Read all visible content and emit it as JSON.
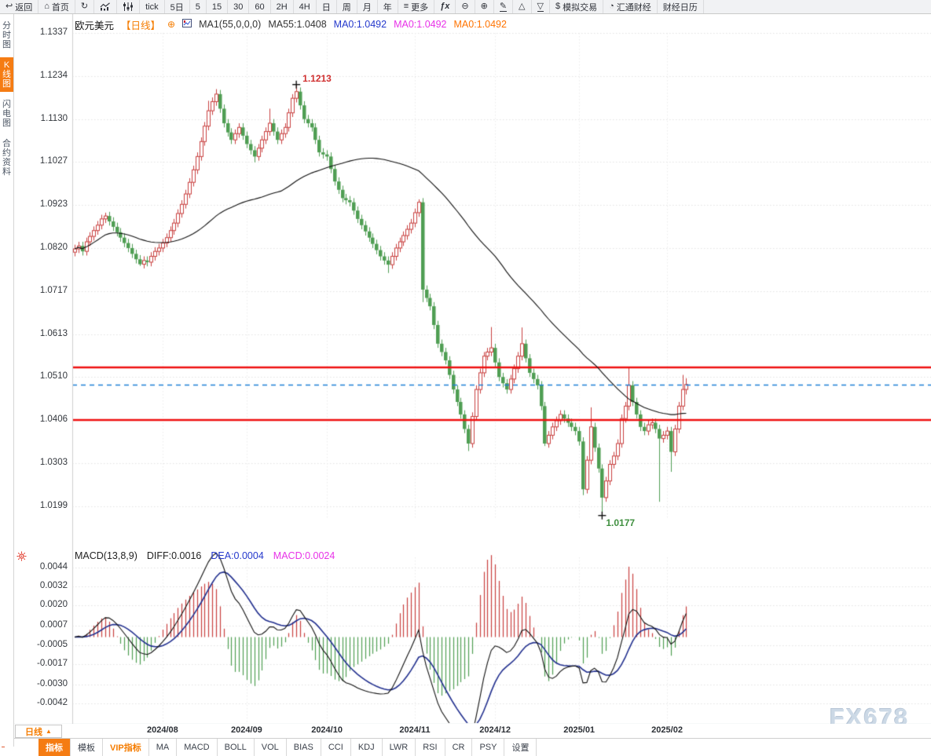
{
  "toolbar": {
    "items": [
      {
        "label": "返回",
        "icon": "back-arrow"
      },
      {
        "label": "首页",
        "icon": "home"
      },
      {
        "label": "",
        "icon": "refresh"
      },
      {
        "label": "",
        "icon": "bar-chart"
      },
      {
        "label": "",
        "icon": "candlestick"
      },
      {
        "label": "tick",
        "icon": ""
      },
      {
        "label": "5日",
        "icon": ""
      },
      {
        "label": "5",
        "icon": ""
      },
      {
        "label": "15",
        "icon": ""
      },
      {
        "label": "30",
        "icon": ""
      },
      {
        "label": "60",
        "icon": ""
      },
      {
        "label": "2H",
        "icon": ""
      },
      {
        "label": "4H",
        "icon": ""
      },
      {
        "label": "日",
        "icon": ""
      },
      {
        "label": "周",
        "icon": ""
      },
      {
        "label": "月",
        "icon": ""
      },
      {
        "label": "年",
        "icon": ""
      },
      {
        "label": "更多",
        "icon": "menu"
      },
      {
        "label": "",
        "icon": "fx"
      },
      {
        "label": "",
        "icon": "zoom-out"
      },
      {
        "label": "",
        "icon": "zoom-in"
      },
      {
        "label": "",
        "icon": "pencil"
      },
      {
        "label": "",
        "icon": "triangle-up"
      },
      {
        "label": "",
        "icon": "triangle-down"
      },
      {
        "label": "模拟交易",
        "icon": "dollar"
      },
      {
        "label": "汇通财经",
        "icon": "clock"
      },
      {
        "label": "财经日历",
        "icon": ""
      }
    ]
  },
  "sidebar": {
    "items": [
      {
        "label": "分时图",
        "active": false
      },
      {
        "label": "K线图",
        "active": true
      },
      {
        "label": "闪电图",
        "active": false
      },
      {
        "label": "合约资料",
        "active": false
      }
    ]
  },
  "main_header": {
    "symbol": "欧元美元",
    "period": "【日线】",
    "add_icon": "⊕",
    "ma_settings": "MA1(55,0,0,0)",
    "ma55": "MA55:1.0408",
    "ma0_blue": "MA0:1.0492",
    "ma0_magenta": "MA0:1.0492",
    "ma0_orange": "MA0:1.0492"
  },
  "macd_header": {
    "title": "MACD(13,8,9)",
    "diff": "DIFF:0.0016",
    "dea": "DEA:0.0004",
    "macd": "MACD:0.0024"
  },
  "bottom": {
    "period_button": "日线",
    "period_arrow": "▲",
    "tabs": [
      {
        "label": "指标",
        "style": "active"
      },
      {
        "label": "模板",
        "style": ""
      },
      {
        "label": "VIP指标",
        "style": "vip"
      },
      {
        "label": "MA",
        "style": ""
      },
      {
        "label": "MACD",
        "style": ""
      },
      {
        "label": "BOLL",
        "style": ""
      },
      {
        "label": "VOL",
        "style": ""
      },
      {
        "label": "BIAS",
        "style": ""
      },
      {
        "label": "CCI",
        "style": ""
      },
      {
        "label": "KDJ",
        "style": ""
      },
      {
        "label": "LWR",
        "style": ""
      },
      {
        "label": "RSI",
        "style": ""
      },
      {
        "label": "CR",
        "style": ""
      },
      {
        "label": "PSY",
        "style": ""
      },
      {
        "label": "设置",
        "style": ""
      }
    ]
  },
  "watermark": "FX678",
  "chart_data": {
    "type": "candlestick",
    "title": "欧元美元 日线 (EUR/USD Daily)",
    "y_ticks_main": [
      "1.1337",
      "1.1234",
      "1.1130",
      "1.1027",
      "1.0923",
      "1.0820",
      "1.0717",
      "1.0613",
      "1.0510",
      "1.0406",
      "1.0303",
      "1.0199"
    ],
    "y_ticks_macd": [
      "0.0044",
      "0.0032",
      "0.0020",
      "0.0007",
      "-0.0005",
      "-0.0017",
      "-0.0030",
      "-0.0042"
    ],
    "month_labels": [
      {
        "label": "2024/08",
        "index": 23
      },
      {
        "label": "2024/09",
        "index": 45
      },
      {
        "label": "2024/10",
        "index": 66
      },
      {
        "label": "2024/11",
        "index": 89
      },
      {
        "label": "2024/12",
        "index": 110
      },
      {
        "label": "2025/01",
        "index": 132
      },
      {
        "label": "2025/02",
        "index": 155
      }
    ],
    "levels": {
      "resistance": 1.0533,
      "support": 1.0406,
      "last_price": 1.0492
    },
    "ma_period": 55,
    "macd_params": {
      "short": 8,
      "long": 13,
      "signal": 9
    },
    "annotations": {
      "high": {
        "index": 58,
        "price": 1.1213,
        "label": "1.1213"
      },
      "low": {
        "index": 138,
        "price": 1.0177,
        "label": "1.0177"
      }
    },
    "colors": {
      "up": "#c9403f",
      "down": "#4f9e53",
      "ma": "#111111",
      "diff": "#111111",
      "dea": "#22308f",
      "level": "#ee1010",
      "last_price": "#1e7fd7",
      "grid": "#e4e4e4",
      "vgrid": "#ececec",
      "annotation_high": "#d03030",
      "annotation_low": "#3f8f3f",
      "accent": "#ff7300",
      "header_blue": "#2438cc",
      "header_magenta": "#e832e8"
    },
    "candles": [
      [
        1.081,
        1.0828,
        1.08,
        1.0818
      ],
      [
        1.0818,
        1.0835,
        1.0808,
        1.0825
      ],
      [
        1.0825,
        1.0835,
        1.0802,
        1.0812
      ],
      [
        1.0812,
        1.0845,
        1.0802,
        1.0835
      ],
      [
        1.0835,
        1.0858,
        1.0825,
        1.0848
      ],
      [
        1.0848,
        1.0872,
        1.0838,
        1.0862
      ],
      [
        1.0862,
        1.0885,
        1.0852,
        1.0875
      ],
      [
        1.0875,
        1.09,
        1.0865,
        1.089
      ],
      [
        1.089,
        1.0905,
        1.088,
        1.0897
      ],
      [
        1.0897,
        1.0907,
        1.0874,
        1.0884
      ],
      [
        1.0884,
        1.0894,
        1.0861,
        1.0871
      ],
      [
        1.0871,
        1.0881,
        1.0848,
        1.0858
      ],
      [
        1.0858,
        1.0868,
        1.0835,
        1.0845
      ],
      [
        1.0845,
        1.0855,
        1.0822,
        1.0832
      ],
      [
        1.0832,
        1.0842,
        1.081,
        1.082
      ],
      [
        1.082,
        1.083,
        1.0796,
        1.0806
      ],
      [
        1.0806,
        1.0816,
        1.0783,
        1.0793
      ],
      [
        1.0793,
        1.0803,
        1.0777,
        1.0781
      ],
      [
        1.0781,
        1.08,
        1.0771,
        1.079
      ],
      [
        1.079,
        1.08,
        1.0776,
        1.0786
      ],
      [
        1.0786,
        1.081,
        1.0776,
        1.08
      ],
      [
        1.08,
        1.0822,
        1.079,
        1.0812
      ],
      [
        1.0812,
        1.083,
        1.0802,
        1.082
      ],
      [
        1.082,
        1.0842,
        1.081,
        1.0832
      ],
      [
        1.0832,
        1.0855,
        1.0822,
        1.0845
      ],
      [
        1.0845,
        1.0872,
        1.0835,
        1.0862
      ],
      [
        1.0862,
        1.089,
        1.0852,
        1.088
      ],
      [
        1.088,
        1.0913,
        1.087,
        1.0903
      ],
      [
        1.0903,
        1.0935,
        1.0893,
        1.0925
      ],
      [
        1.0925,
        1.096,
        1.0915,
        1.095
      ],
      [
        1.095,
        1.0988,
        1.094,
        1.0978
      ],
      [
        1.0978,
        1.1018,
        1.0968,
        1.1008
      ],
      [
        1.1008,
        1.105,
        1.0998,
        1.104
      ],
      [
        1.104,
        1.1086,
        1.103,
        1.1076
      ],
      [
        1.1076,
        1.1123,
        1.1066,
        1.1113
      ],
      [
        1.1113,
        1.1174,
        1.1103,
        1.115
      ],
      [
        1.115,
        1.1182,
        1.114,
        1.1172
      ],
      [
        1.1172,
        1.1202,
        1.1162,
        1.119
      ],
      [
        1.119,
        1.12,
        1.1145,
        1.1155
      ],
      [
        1.1155,
        1.1165,
        1.111,
        1.112
      ],
      [
        1.112,
        1.113,
        1.1088,
        1.1098
      ],
      [
        1.1098,
        1.1108,
        1.107,
        1.108
      ],
      [
        1.108,
        1.1105,
        1.107,
        1.1095
      ],
      [
        1.1095,
        1.112,
        1.1085,
        1.111
      ],
      [
        1.111,
        1.112,
        1.108,
        1.109
      ],
      [
        1.109,
        1.11,
        1.106,
        1.107
      ],
      [
        1.107,
        1.108,
        1.1045,
        1.1055
      ],
      [
        1.1055,
        1.1065,
        1.1026,
        1.104
      ],
      [
        1.104,
        1.107,
        1.103,
        1.106
      ],
      [
        1.106,
        1.109,
        1.105,
        1.108
      ],
      [
        1.108,
        1.111,
        1.107,
        1.11
      ],
      [
        1.11,
        1.1155,
        1.109,
        1.112
      ],
      [
        1.112,
        1.113,
        1.109,
        1.11
      ],
      [
        1.11,
        1.111,
        1.107,
        1.108
      ],
      [
        1.108,
        1.1105,
        1.107,
        1.1095
      ],
      [
        1.1095,
        1.112,
        1.1085,
        1.111
      ],
      [
        1.111,
        1.1155,
        1.11,
        1.1145
      ],
      [
        1.1145,
        1.119,
        1.1135,
        1.118
      ],
      [
        1.118,
        1.1213,
        1.117,
        1.1196
      ],
      [
        1.1196,
        1.1206,
        1.1153,
        1.1163
      ],
      [
        1.1163,
        1.1173,
        1.112,
        1.113
      ],
      [
        1.113,
        1.114,
        1.111,
        1.112
      ],
      [
        1.112,
        1.113,
        1.11,
        1.111
      ],
      [
        1.111,
        1.112,
        1.107,
        1.108
      ],
      [
        1.108,
        1.109,
        1.104,
        1.105
      ],
      [
        1.105,
        1.106,
        1.1035,
        1.1045
      ],
      [
        1.1045,
        1.1055,
        1.103,
        1.104
      ],
      [
        1.104,
        1.105,
        1.1,
        1.101
      ],
      [
        1.101,
        1.102,
        1.097,
        1.098
      ],
      [
        1.098,
        1.099,
        1.095,
        1.096
      ],
      [
        1.096,
        1.097,
        1.093,
        1.094
      ],
      [
        1.094,
        1.095,
        1.0925,
        1.0935
      ],
      [
        1.0935,
        1.0945,
        1.092,
        1.093
      ],
      [
        1.093,
        1.094,
        1.09,
        1.091
      ],
      [
        1.091,
        1.092,
        1.088,
        1.089
      ],
      [
        1.089,
        1.09,
        1.0865,
        1.0875
      ],
      [
        1.0875,
        1.0885,
        1.085,
        1.086
      ],
      [
        1.086,
        1.087,
        1.0835,
        1.0845
      ],
      [
        1.0845,
        1.0855,
        1.082,
        1.083
      ],
      [
        1.083,
        1.084,
        1.0805,
        1.0815
      ],
      [
        1.0815,
        1.0825,
        1.079,
        1.08
      ],
      [
        1.08,
        1.081,
        1.078,
        1.079
      ],
      [
        1.079,
        1.08,
        1.076,
        1.078
      ],
      [
        1.078,
        1.081,
        1.077,
        1.08
      ],
      [
        1.08,
        1.083,
        1.079,
        1.082
      ],
      [
        1.082,
        1.0845,
        1.081,
        1.0835
      ],
      [
        1.0835,
        1.086,
        1.0825,
        1.085
      ],
      [
        1.085,
        1.0875,
        1.084,
        1.0865
      ],
      [
        1.0865,
        1.089,
        1.0855,
        1.088
      ],
      [
        1.088,
        1.0915,
        1.087,
        1.0905
      ],
      [
        1.0905,
        1.0937,
        1.0895,
        1.093
      ],
      [
        1.093,
        1.094,
        1.069,
        1.072
      ],
      [
        1.072,
        1.073,
        1.069,
        1.07
      ],
      [
        1.07,
        1.071,
        1.067,
        1.068
      ],
      [
        1.068,
        1.069,
        1.0625,
        1.0635
      ],
      [
        1.0635,
        1.0645,
        1.058,
        1.059
      ],
      [
        1.059,
        1.06,
        1.056,
        1.057
      ],
      [
        1.057,
        1.058,
        1.054,
        1.055
      ],
      [
        1.055,
        1.056,
        1.0505,
        1.0515
      ],
      [
        1.0515,
        1.0525,
        1.047,
        1.048
      ],
      [
        1.048,
        1.049,
        1.044,
        1.045
      ],
      [
        1.045,
        1.046,
        1.041,
        1.042
      ],
      [
        1.042,
        1.043,
        1.0375,
        1.0385
      ],
      [
        1.0385,
        1.0395,
        1.0332,
        1.035
      ],
      [
        1.035,
        1.0425,
        1.034,
        1.0415
      ],
      [
        1.0415,
        1.049,
        1.0405,
        1.048
      ],
      [
        1.048,
        1.053,
        1.047,
        1.052
      ],
      [
        1.052,
        1.057,
        1.051,
        1.056
      ],
      [
        1.056,
        1.058,
        1.055,
        1.057
      ],
      [
        1.057,
        1.063,
        1.056,
        1.058
      ],
      [
        1.058,
        1.059,
        1.0535,
        1.0545
      ],
      [
        1.0545,
        1.0555,
        1.05,
        1.051
      ],
      [
        1.051,
        1.052,
        1.0485,
        1.0495
      ],
      [
        1.0495,
        1.0505,
        1.047,
        1.048
      ],
      [
        1.048,
        1.0515,
        1.047,
        1.0505
      ],
      [
        1.0505,
        1.054,
        1.0495,
        1.053
      ],
      [
        1.053,
        1.057,
        1.052,
        1.056
      ],
      [
        1.056,
        1.0629,
        1.055,
        1.059
      ],
      [
        1.059,
        1.06,
        1.0545,
        1.0555
      ],
      [
        1.0555,
        1.0565,
        1.051,
        1.052
      ],
      [
        1.052,
        1.053,
        1.0495,
        1.0505
      ],
      [
        1.0505,
        1.0515,
        1.048,
        1.049
      ],
      [
        1.049,
        1.05,
        1.043,
        1.044
      ],
      [
        1.044,
        1.045,
        1.0344,
        1.035
      ],
      [
        1.035,
        1.038,
        1.034,
        1.037
      ],
      [
        1.037,
        1.04,
        1.036,
        1.039
      ],
      [
        1.039,
        1.0415,
        1.038,
        1.0405
      ],
      [
        1.0405,
        1.043,
        1.0395,
        1.042
      ],
      [
        1.042,
        1.043,
        1.04,
        1.041
      ],
      [
        1.041,
        1.042,
        1.039,
        1.04
      ],
      [
        1.04,
        1.041,
        1.038,
        1.039
      ],
      [
        1.039,
        1.04,
        1.037,
        1.038
      ],
      [
        1.038,
        1.039,
        1.0345,
        1.0355
      ],
      [
        1.0355,
        1.0365,
        1.0226,
        1.024
      ],
      [
        1.024,
        1.032,
        1.023,
        1.031
      ],
      [
        1.031,
        1.0437,
        1.03,
        1.039
      ],
      [
        1.039,
        1.04,
        1.033,
        1.034
      ],
      [
        1.034,
        1.035,
        1.028,
        1.029
      ],
      [
        1.029,
        1.03,
        1.0177,
        1.022
      ],
      [
        1.022,
        1.027,
        1.021,
        1.026
      ],
      [
        1.026,
        1.031,
        1.025,
        1.03
      ],
      [
        1.03,
        1.033,
        1.029,
        1.032
      ],
      [
        1.032,
        1.036,
        1.031,
        1.035
      ],
      [
        1.035,
        1.042,
        1.034,
        1.041
      ],
      [
        1.041,
        1.045,
        1.04,
        1.044
      ],
      [
        1.044,
        1.0532,
        1.043,
        1.049
      ],
      [
        1.049,
        1.05,
        1.044,
        1.045
      ],
      [
        1.045,
        1.046,
        1.041,
        1.042
      ],
      [
        1.042,
        1.043,
        1.038,
        1.039
      ],
      [
        1.039,
        1.04,
        1.037,
        1.038
      ],
      [
        1.038,
        1.0405,
        1.037,
        1.0395
      ],
      [
        1.0395,
        1.041,
        1.0385,
        1.04
      ],
      [
        1.04,
        1.041,
        1.0375,
        1.0385
      ],
      [
        1.0385,
        1.0395,
        1.021,
        1.0362
      ],
      [
        1.0362,
        1.038,
        1.0352,
        1.037
      ],
      [
        1.037,
        1.039,
        1.036,
        1.038
      ],
      [
        1.038,
        1.039,
        1.0282,
        1.033
      ],
      [
        1.033,
        1.0395,
        1.032,
        1.0385
      ],
      [
        1.0385,
        1.045,
        1.0375,
        1.044
      ],
      [
        1.044,
        1.0515,
        1.043,
        1.048
      ],
      [
        1.048,
        1.0507,
        1.0468,
        1.0492
      ]
    ]
  }
}
